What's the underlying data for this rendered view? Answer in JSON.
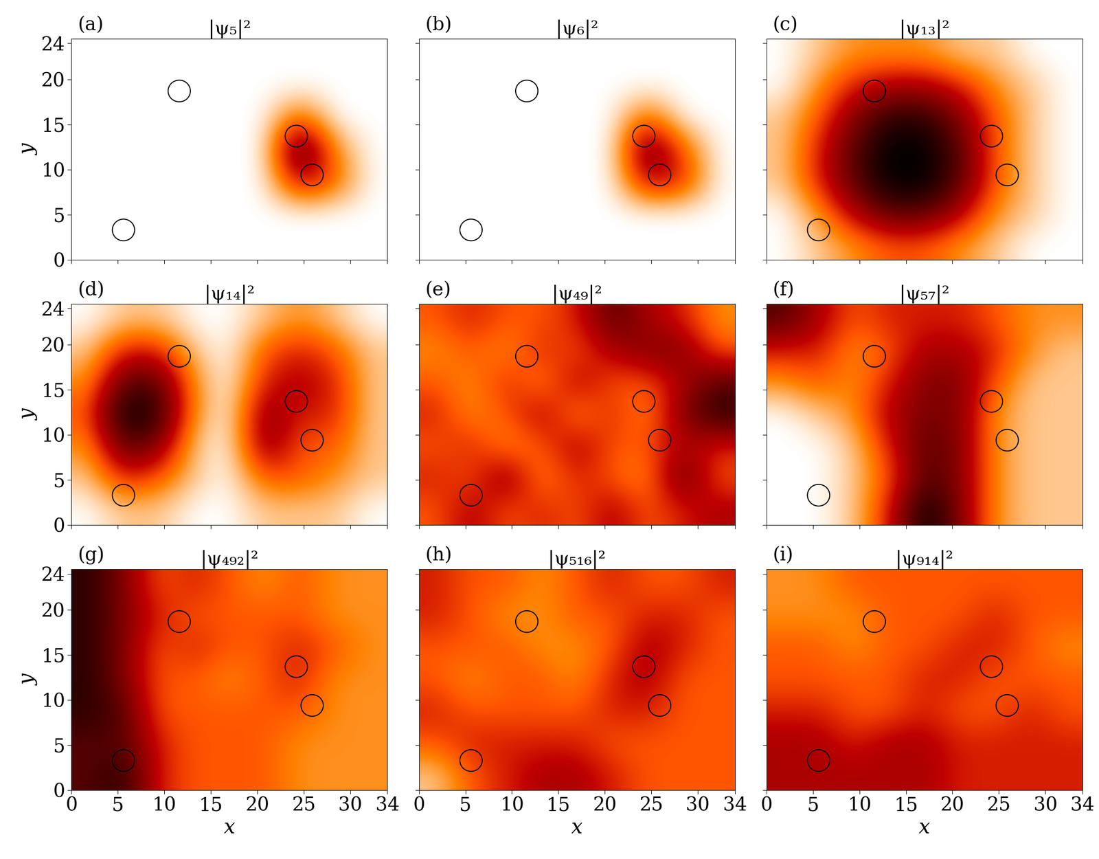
{
  "chart_data": [
    {
      "type": "heatmap",
      "panel": "(a)",
      "title": "|ψ₅|²",
      "ylabel": "y",
      "tick_labels": "y",
      "xlim": [
        0,
        34
      ],
      "ylim": [
        0,
        24.5
      ],
      "xticks": [
        0,
        5,
        10,
        15,
        20,
        25,
        30,
        34
      ],
      "yticks": [
        0,
        5,
        10,
        15,
        20,
        24
      ],
      "color": "gist_heat_r",
      "zlim": [
        0,
        9
      ],
      "cells": [
        [
          0,
          0,
          0,
          0,
          0,
          0,
          0,
          0,
          0
        ],
        [
          0,
          0,
          0,
          0,
          0,
          0,
          0,
          0,
          0
        ],
        [
          0,
          0,
          0,
          0,
          0,
          0,
          3,
          0,
          0
        ],
        [
          0,
          0,
          0,
          0,
          0,
          0,
          8,
          2,
          0
        ],
        [
          0,
          0,
          0,
          0,
          0,
          0,
          5,
          3,
          0
        ],
        [
          0,
          0,
          0,
          0,
          0,
          0,
          0,
          0,
          0
        ],
        [
          0,
          0,
          0,
          0,
          0,
          0,
          0,
          0,
          0
        ]
      ],
      "scatterers": [
        [
          11.6,
          18.7,
          1.2
        ],
        [
          24.2,
          13.7,
          1.2
        ],
        [
          25.9,
          9.4,
          1.2
        ],
        [
          5.6,
          3.3,
          1.2
        ]
      ]
    },
    {
      "type": "heatmap",
      "panel": "(b)",
      "title": "|ψ₆|²",
      "tick_labels": false,
      "xlim": [
        0,
        34
      ],
      "ylim": [
        0,
        24.5
      ],
      "xticks": [
        0,
        5,
        10,
        15,
        20,
        25,
        30,
        34
      ],
      "yticks": [
        0,
        5,
        10,
        15,
        20,
        24
      ],
      "color": "gist_heat_r",
      "zlim": [
        0,
        9
      ],
      "cells": [
        [
          0,
          0,
          0,
          0,
          0,
          0,
          0,
          0,
          0
        ],
        [
          0,
          0,
          0,
          0,
          0,
          0,
          0,
          0,
          0
        ],
        [
          0,
          0,
          0,
          0,
          0,
          0,
          3,
          0,
          0
        ],
        [
          0,
          0,
          0,
          0,
          0,
          0,
          7,
          3,
          0
        ],
        [
          0,
          0,
          0,
          0,
          0,
          0,
          5,
          4,
          0
        ],
        [
          0,
          0,
          0,
          0,
          0,
          0,
          0,
          0,
          0
        ],
        [
          0,
          0,
          0,
          0,
          0,
          0,
          0,
          0,
          0
        ]
      ],
      "scatterers": [
        [
          11.6,
          18.7,
          1.2
        ],
        [
          24.2,
          13.7,
          1.2
        ],
        [
          25.9,
          9.4,
          1.2
        ],
        [
          5.6,
          3.3,
          1.2
        ]
      ]
    },
    {
      "type": "heatmap",
      "panel": "(c)",
      "title": "|ψ₁₃|²",
      "tick_labels": false,
      "xlim": [
        0,
        34
      ],
      "ylim": [
        0,
        24.5
      ],
      "xticks": [
        0,
        5,
        10,
        15,
        20,
        25,
        30,
        34
      ],
      "yticks": [
        0,
        5,
        10,
        15,
        20,
        24
      ],
      "color": "gist_heat_r",
      "zlim": [
        0,
        9
      ],
      "cells": [
        [
          0,
          1,
          2,
          2,
          2,
          1,
          1,
          0,
          0
        ],
        [
          0,
          2,
          4,
          5,
          5,
          4,
          2,
          1,
          0
        ],
        [
          1,
          3,
          6,
          8,
          8,
          6,
          3,
          1,
          0
        ],
        [
          1,
          4,
          7,
          9,
          9,
          7,
          3,
          1,
          0
        ],
        [
          1,
          4,
          7,
          9,
          9,
          7,
          3,
          1,
          0
        ],
        [
          0,
          2,
          5,
          7,
          7,
          5,
          2,
          1,
          0
        ],
        [
          0,
          1,
          2,
          3,
          3,
          2,
          1,
          0,
          0
        ]
      ],
      "scatterers": [
        [
          11.6,
          18.7,
          1.2
        ],
        [
          24.2,
          13.7,
          1.2
        ],
        [
          25.9,
          9.4,
          1.2
        ],
        [
          5.6,
          3.3,
          1.2
        ]
      ]
    },
    {
      "type": "heatmap",
      "panel": "(d)",
      "title": "|ψ₁₄|²",
      "ylabel": "y",
      "tick_labels": "y",
      "xlim": [
        0,
        34
      ],
      "ylim": [
        0,
        24.5
      ],
      "xticks": [
        0,
        5,
        10,
        15,
        20,
        25,
        30,
        34
      ],
      "yticks": [
        0,
        5,
        10,
        15,
        20,
        24
      ],
      "color": "gist_heat_r",
      "zlim": [
        0,
        9
      ],
      "cells": [
        [
          0,
          1,
          1,
          0,
          0,
          1,
          2,
          1,
          0
        ],
        [
          1,
          4,
          4,
          1,
          0,
          3,
          4,
          3,
          1
        ],
        [
          2,
          7,
          7,
          2,
          0,
          4,
          5,
          4,
          1
        ],
        [
          3,
          9,
          8,
          2,
          0,
          6,
          4,
          4,
          1
        ],
        [
          2,
          7,
          6,
          1,
          0,
          6,
          3,
          3,
          1
        ],
        [
          1,
          4,
          3,
          1,
          0,
          3,
          3,
          2,
          1
        ],
        [
          0,
          1,
          1,
          0,
          0,
          1,
          1,
          1,
          0
        ]
      ],
      "scatterers": [
        [
          11.6,
          18.7,
          1.2
        ],
        [
          24.2,
          13.7,
          1.2
        ],
        [
          25.9,
          9.4,
          1.2
        ],
        [
          5.6,
          3.3,
          1.2
        ]
      ]
    },
    {
      "type": "heatmap",
      "panel": "(e)",
      "title": "|ψ₄₉|²",
      "tick_labels": false,
      "xlim": [
        0,
        34
      ],
      "ylim": [
        0,
        24.5
      ],
      "xticks": [
        0,
        5,
        10,
        15,
        20,
        25,
        30,
        34
      ],
      "yticks": [
        0,
        5,
        10,
        15,
        20,
        24
      ],
      "color": "gist_heat_r",
      "zlim": [
        0,
        9
      ],
      "cells": [
        [
          3,
          4,
          3,
          3,
          4,
          7,
          5,
          4,
          2
        ],
        [
          2,
          3,
          2,
          4,
          3,
          5,
          6,
          6,
          3
        ],
        [
          3,
          2,
          4,
          2,
          5,
          3,
          3,
          5,
          7
        ],
        [
          4,
          2,
          3,
          5,
          2,
          4,
          2,
          6,
          8
        ],
        [
          3,
          4,
          2,
          3,
          5,
          3,
          3,
          5,
          4
        ],
        [
          4,
          3,
          6,
          2,
          4,
          3,
          2,
          7,
          3
        ],
        [
          3,
          5,
          3,
          4,
          3,
          5,
          3,
          4,
          5
        ]
      ],
      "scatterers": [
        [
          11.6,
          18.7,
          1.2
        ],
        [
          24.2,
          13.7,
          1.2
        ],
        [
          25.9,
          9.4,
          1.2
        ],
        [
          5.6,
          3.3,
          1.2
        ]
      ]
    },
    {
      "type": "heatmap",
      "panel": "(f)",
      "title": "|ψ₅₇|²",
      "tick_labels": false,
      "xlim": [
        0,
        34
      ],
      "ylim": [
        0,
        24.5
      ],
      "xticks": [
        0,
        5,
        10,
        15,
        20,
        25,
        30,
        34
      ],
      "yticks": [
        0,
        5,
        10,
        15,
        20,
        24
      ],
      "color": "gist_heat_r",
      "zlim": [
        0,
        9
      ],
      "cells": [
        [
          7,
          5,
          3,
          4,
          4,
          4,
          3,
          2,
          2
        ],
        [
          4,
          4,
          2,
          3,
          5,
          5,
          4,
          2,
          1
        ],
        [
          2,
          3,
          2,
          4,
          6,
          6,
          3,
          1,
          1
        ],
        [
          0,
          1,
          2,
          5,
          6,
          6,
          2,
          1,
          1
        ],
        [
          0,
          0,
          1,
          4,
          7,
          6,
          2,
          1,
          1
        ],
        [
          0,
          0,
          1,
          3,
          7,
          6,
          2,
          1,
          1
        ],
        [
          0,
          0,
          1,
          4,
          9,
          6,
          2,
          1,
          1
        ]
      ],
      "scatterers": [
        [
          11.6,
          18.7,
          1.2
        ],
        [
          24.2,
          13.7,
          1.2
        ],
        [
          25.9,
          9.4,
          1.2
        ],
        [
          5.6,
          3.3,
          1.2
        ]
      ]
    },
    {
      "type": "heatmap",
      "panel": "(g)",
      "title": "|ψ₄₉₂|²",
      "xlabel": "x",
      "ylabel": "y",
      "tick_labels": true,
      "xlim": [
        0,
        34
      ],
      "ylim": [
        0,
        24.5
      ],
      "xticks": [
        0,
        5,
        10,
        15,
        20,
        25,
        30,
        34
      ],
      "yticks": [
        0,
        5,
        10,
        15,
        20,
        24
      ],
      "color": "gist_heat_r",
      "zlim": [
        0,
        9
      ],
      "cells": [
        [
          8,
          6,
          3,
          4,
          3,
          2,
          3,
          2,
          2
        ],
        [
          8,
          6,
          4,
          3,
          3,
          3,
          3,
          2,
          2
        ],
        [
          8,
          6,
          3,
          4,
          3,
          3,
          4,
          3,
          2
        ],
        [
          8,
          6,
          3,
          3,
          2,
          3,
          4,
          2,
          2
        ],
        [
          8,
          7,
          3,
          3,
          3,
          3,
          3,
          2,
          2
        ],
        [
          7,
          7,
          4,
          3,
          3,
          3,
          2,
          2,
          2
        ],
        [
          7,
          8,
          4,
          3,
          3,
          3,
          2,
          2,
          2
        ]
      ],
      "scatterers": [
        [
          11.6,
          18.7,
          1.2
        ],
        [
          24.2,
          13.7,
          1.2
        ],
        [
          25.9,
          9.4,
          1.2
        ],
        [
          5.6,
          3.3,
          1.2
        ]
      ]
    },
    {
      "type": "heatmap",
      "panel": "(h)",
      "title": "|ψ₅₁₆|²",
      "xlabel": "x",
      "tick_labels": "x",
      "xlim": [
        0,
        34
      ],
      "ylim": [
        0,
        24.5
      ],
      "xticks": [
        0,
        5,
        10,
        15,
        20,
        25,
        30,
        34
      ],
      "yticks": [
        0,
        5,
        10,
        15,
        20,
        24
      ],
      "color": "gist_heat_r",
      "zlim": [
        0,
        9
      ],
      "cells": [
        [
          4,
          3,
          3,
          2,
          3,
          4,
          3,
          3,
          4
        ],
        [
          4,
          3,
          2,
          2,
          3,
          3,
          4,
          4,
          3
        ],
        [
          3,
          3,
          3,
          2,
          2,
          3,
          5,
          4,
          3
        ],
        [
          3,
          2,
          3,
          3,
          2,
          4,
          5,
          3,
          3
        ],
        [
          4,
          3,
          3,
          3,
          3,
          4,
          4,
          3,
          3
        ],
        [
          3,
          4,
          4,
          4,
          4,
          3,
          3,
          3,
          3
        ],
        [
          1,
          3,
          4,
          5,
          5,
          4,
          3,
          3,
          3
        ]
      ],
      "scatterers": [
        [
          11.6,
          18.7,
          1.2
        ],
        [
          24.2,
          13.7,
          1.2
        ],
        [
          25.9,
          9.4,
          1.2
        ],
        [
          5.6,
          3.3,
          1.2
        ]
      ]
    },
    {
      "type": "heatmap",
      "panel": "(i)",
      "title": "|ψ₉₁₄|²",
      "xlabel": "x",
      "tick_labels": "x",
      "xlim": [
        0,
        34
      ],
      "ylim": [
        0,
        24.5
      ],
      "xticks": [
        0,
        5,
        10,
        15,
        20,
        25,
        30,
        34
      ],
      "yticks": [
        0,
        5,
        10,
        15,
        20,
        24
      ],
      "color": "gist_heat_r",
      "zlim": [
        0,
        9
      ],
      "cells": [
        [
          2,
          2,
          3,
          3,
          3,
          3,
          3,
          3,
          3
        ],
        [
          2,
          2,
          2,
          3,
          3,
          3,
          4,
          3,
          3
        ],
        [
          3,
          3,
          2,
          3,
          3,
          4,
          4,
          3,
          2
        ],
        [
          3,
          3,
          3,
          3,
          4,
          4,
          3,
          3,
          3
        ],
        [
          4,
          4,
          3,
          3,
          4,
          3,
          3,
          4,
          3
        ],
        [
          5,
          5,
          4,
          5,
          5,
          4,
          4,
          4,
          4
        ],
        [
          5,
          5,
          5,
          5,
          5,
          4,
          4,
          4,
          4
        ]
      ],
      "scatterers": [
        [
          11.6,
          18.7,
          1.2
        ],
        [
          24.2,
          13.7,
          1.2
        ],
        [
          25.9,
          9.4,
          1.2
        ],
        [
          5.6,
          3.3,
          1.2
        ]
      ]
    }
  ]
}
